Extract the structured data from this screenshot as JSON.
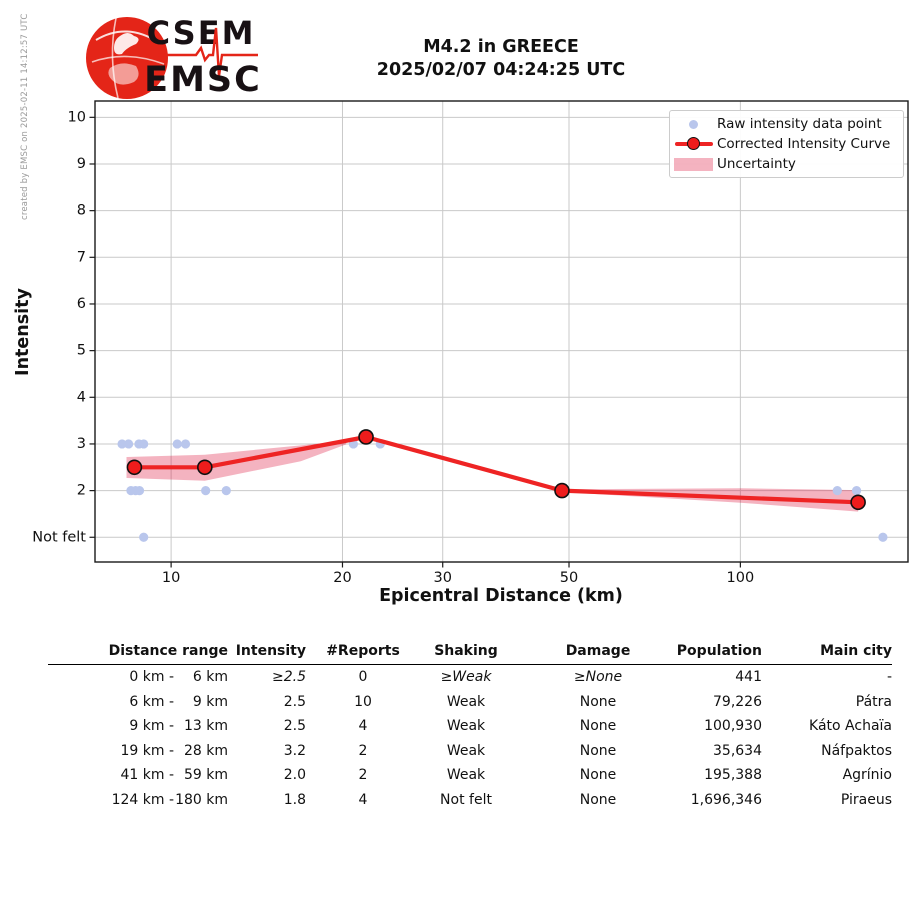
{
  "header": {
    "logo_line1": "CSEM",
    "logo_line2": "EMSC",
    "title_line1": "M4.2 in GREECE",
    "title_line2": "2025/02/07 04:24:25 UTC",
    "credit": "created by EMSC on 2025-02-11 14:12:57 UTC"
  },
  "chart_data": {
    "type": "line",
    "xlabel": "Epicentral Distance (km)",
    "ylabel": "Intensity",
    "x_scale": "log",
    "xlim": [
      7.35,
      197
    ],
    "ylim": [
      0.47,
      10.35
    ],
    "x_ticks": [
      10,
      20,
      30,
      50,
      100
    ],
    "y_ticks": [
      1,
      2,
      3,
      4,
      5,
      6,
      7,
      8,
      9,
      10
    ],
    "y_tick_labels": [
      "Not felt",
      "2",
      "3",
      "4",
      "5",
      "6",
      "7",
      "8",
      "9",
      "10"
    ],
    "grid": true,
    "legend_position": "upper right",
    "series": [
      {
        "name": "Raw intensity data point",
        "type": "scatter",
        "points": [
          [
            8.2,
            3
          ],
          [
            8.42,
            3
          ],
          [
            8.78,
            3
          ],
          [
            8.95,
            3
          ],
          [
            10.25,
            3
          ],
          [
            10.6,
            3
          ],
          [
            20.9,
            3
          ],
          [
            23.3,
            3
          ],
          [
            8.5,
            2
          ],
          [
            8.66,
            2
          ],
          [
            8.8,
            2
          ],
          [
            11.5,
            2
          ],
          [
            12.5,
            2
          ],
          [
            148,
            2
          ],
          [
            160,
            2
          ],
          [
            8.95,
            1
          ],
          [
            178,
            1
          ]
        ]
      },
      {
        "name": "Corrected Intensity Curve",
        "type": "line+marker",
        "points": [
          [
            8.62,
            2.5
          ],
          [
            11.46,
            2.5
          ],
          [
            22.0,
            3.15
          ],
          [
            48.6,
            2.0
          ],
          [
            161,
            1.75
          ]
        ]
      }
    ],
    "uncertainty_bands": [
      {
        "name": "Uncertainty",
        "polygon": [
          [
            8.35,
            2.72
          ],
          [
            11.46,
            2.77
          ],
          [
            16.9,
            2.97
          ],
          [
            20.3,
            3.07
          ],
          [
            20.3,
            2.99
          ],
          [
            16.9,
            2.63
          ],
          [
            11.46,
            2.21
          ],
          [
            8.35,
            2.27
          ]
        ]
      },
      {
        "name": "Uncertainty",
        "polygon": [
          [
            48.6,
            2.03
          ],
          [
            100,
            2.05
          ],
          [
            161,
            2.01
          ],
          [
            161,
            1.55
          ],
          [
            100,
            1.74
          ],
          [
            48.6,
            1.97
          ]
        ]
      }
    ],
    "colors": {
      "raw": "#b9c6ec",
      "curve": "#ee2424",
      "marker": "#ee1c1c",
      "marker_edge": "#111111",
      "band": "rgba(220,20,60,0.32)",
      "grid": "#c9c9c9",
      "spine": "#1a1a1a",
      "logo_red": "#e42518"
    }
  },
  "legend": {
    "items": [
      {
        "label": "Raw intensity data point",
        "swatch": "dot"
      },
      {
        "label": "Corrected Intensity Curve",
        "swatch": "line-marker"
      },
      {
        "label": "Uncertainty",
        "swatch": "patch"
      }
    ]
  },
  "table": {
    "headers": [
      "Distance range",
      "Intensity",
      "#Reports",
      "Shaking",
      "Damage",
      "Population",
      "Main city"
    ],
    "rows": [
      {
        "range_from": "0 km -",
        "range_to": "6 km",
        "intensity": "≥2.5",
        "reports": "0",
        "shaking": "≥Weak",
        "damage": "≥None",
        "population": "441",
        "city": "-",
        "estimated": true
      },
      {
        "range_from": "6 km -",
        "range_to": "9 km",
        "intensity": "2.5",
        "reports": "10",
        "shaking": "Weak",
        "damage": "None",
        "population": "79,226",
        "city": "Pátra",
        "estimated": false
      },
      {
        "range_from": "9 km -",
        "range_to": "13 km",
        "intensity": "2.5",
        "reports": "4",
        "shaking": "Weak",
        "damage": "None",
        "population": "100,930",
        "city": "Káto Achaïa",
        "estimated": false
      },
      {
        "range_from": "19 km -",
        "range_to": "28 km",
        "intensity": "3.2",
        "reports": "2",
        "shaking": "Weak",
        "damage": "None",
        "population": "35,634",
        "city": "Náfpaktos",
        "estimated": false
      },
      {
        "range_from": "41 km -",
        "range_to": "59 km",
        "intensity": "2.0",
        "reports": "2",
        "shaking": "Weak",
        "damage": "None",
        "population": "195,388",
        "city": "Agrínio",
        "estimated": false
      },
      {
        "range_from": "124 km -",
        "range_to": "180 km",
        "intensity": "1.8",
        "reports": "4",
        "shaking": "Not felt",
        "damage": "None",
        "population": "1,696,346",
        "city": "Piraeus",
        "estimated": false
      }
    ]
  }
}
